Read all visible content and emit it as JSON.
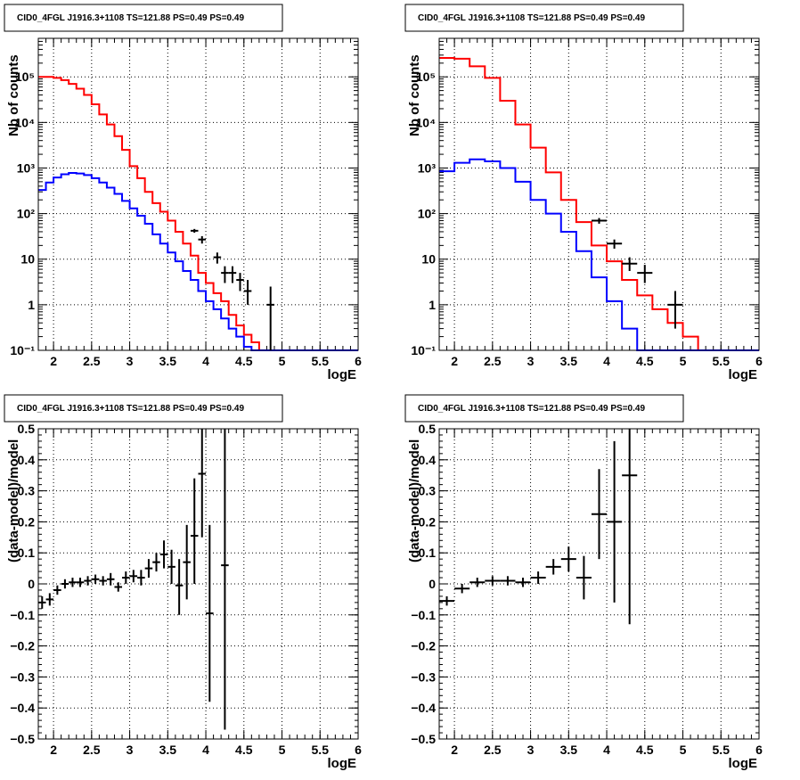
{
  "colors": {
    "model": "#ff0000",
    "component": "#0000ff",
    "data": "#000000"
  },
  "chart_data": [
    {
      "type": "line",
      "title": "CID0_4FGL J1916.3+1108 TS=121.88 PS=0.49 PS=0.49",
      "xlabel": "logE",
      "ylabel": "Nb of counts",
      "log_y": true,
      "grid": true,
      "xlim": [
        1.8,
        6.0
      ],
      "ylim": [
        0.1,
        700000
      ],
      "x_ticks": [
        "2",
        "2.5",
        "3",
        "3.5",
        "4",
        "4.5",
        "5",
        "5.5",
        "6"
      ],
      "y_ticks": [
        "10⁻¹",
        "1",
        "10",
        "10²",
        "10³",
        "10⁴",
        "10⁵"
      ],
      "series": [
        {
          "style": "step",
          "color_key": "model",
          "edges": [
            1.8,
            1.9,
            2.0,
            2.1,
            2.2,
            2.3,
            2.4,
            2.5,
            2.6,
            2.7,
            2.8,
            2.9,
            3.0,
            3.1,
            3.2,
            3.3,
            3.4,
            3.5,
            3.6,
            3.7,
            3.8,
            3.9,
            4.0,
            4.1,
            4.2,
            4.3,
            4.4,
            4.5,
            4.6,
            4.7,
            4.8,
            4.9,
            5.0,
            5.1,
            5.2,
            5.3,
            5.4,
            5.5,
            5.6,
            5.7,
            5.8,
            5.9,
            6.0
          ],
          "values": [
            100000,
            100000,
            95000,
            85000,
            70000,
            55000,
            40000,
            25000,
            15000,
            9000,
            5000,
            2500,
            1100,
            600,
            300,
            170,
            110,
            70,
            40,
            22,
            12,
            5,
            3,
            1.8,
            1.2,
            0.6,
            0.35,
            0.22,
            0.15,
            0.1,
            0.1,
            0.1,
            0.1,
            0.1,
            0.1,
            0.1,
            0.1,
            0.1,
            0.1,
            0.1,
            0.1,
            0.1
          ]
        },
        {
          "style": "step",
          "color_key": "component",
          "edges": [
            1.8,
            1.9,
            2.0,
            2.1,
            2.2,
            2.3,
            2.4,
            2.5,
            2.6,
            2.7,
            2.8,
            2.9,
            3.0,
            3.1,
            3.2,
            3.3,
            3.4,
            3.5,
            3.6,
            3.7,
            3.8,
            3.9,
            4.0,
            4.1,
            4.2,
            4.3,
            4.4,
            4.5,
            4.6,
            4.7,
            4.8,
            4.9,
            5.0,
            5.1,
            5.2,
            5.3,
            5.4,
            5.5,
            5.6,
            5.7,
            5.8,
            5.9,
            6.0
          ],
          "values": [
            330,
            480,
            620,
            730,
            780,
            760,
            700,
            600,
            480,
            370,
            270,
            190,
            130,
            90,
            60,
            35,
            22,
            14,
            9,
            5.5,
            3.5,
            2,
            1.2,
            0.8,
            0.5,
            0.3,
            0.2,
            0.12,
            0.1,
            0.1,
            0.1,
            0.1,
            0.1,
            0.1,
            0.1,
            0.1,
            0.1,
            0.1,
            0.1,
            0.1,
            0.1,
            0.1
          ]
        },
        {
          "style": "errorbar",
          "color_key": "data",
          "points": [
            {
              "x": 3.85,
              "y": 42,
              "xerr": 0.05,
              "ylo": 38,
              "yhi": 46
            },
            {
              "x": 3.95,
              "y": 27,
              "xerr": 0.05,
              "ylo": 22,
              "yhi": 32
            },
            {
              "x": 4.15,
              "y": 11,
              "xerr": 0.05,
              "ylo": 8,
              "yhi": 14
            },
            {
              "x": 4.25,
              "y": 5,
              "xerr": 0.05,
              "ylo": 3,
              "yhi": 7
            },
            {
              "x": 4.35,
              "y": 5,
              "xerr": 0.05,
              "ylo": 3,
              "yhi": 7
            },
            {
              "x": 4.45,
              "y": 3.5,
              "xerr": 0.05,
              "ylo": 2,
              "yhi": 5
            },
            {
              "x": 4.55,
              "y": 2,
              "xerr": 0.05,
              "ylo": 1,
              "yhi": 3.5
            },
            {
              "x": 4.85,
              "y": 1,
              "xerr": 0.05,
              "ylo": 0.1,
              "yhi": 2.5
            }
          ]
        }
      ]
    },
    {
      "type": "line",
      "title": "CID0_4FGL J1916.3+1108 TS=121.88 PS=0.49 PS=0.49",
      "xlabel": "logE",
      "ylabel": "Nb of counts",
      "log_y": true,
      "grid": true,
      "xlim": [
        1.8,
        6.0
      ],
      "ylim": [
        0.1,
        700000
      ],
      "x_ticks": [
        "2",
        "2.5",
        "3",
        "3.5",
        "4",
        "4.5",
        "5",
        "5.5",
        "6"
      ],
      "y_ticks": [
        "10⁻¹",
        "1",
        "10",
        "10²",
        "10³",
        "10⁴",
        "10⁵"
      ],
      "series": [
        {
          "style": "step",
          "color_key": "model",
          "edges": [
            1.8,
            2.0,
            2.2,
            2.4,
            2.6,
            2.8,
            3.0,
            3.2,
            3.4,
            3.6,
            3.8,
            4.0,
            4.2,
            4.4,
            4.6,
            4.8,
            5.0,
            5.2,
            5.4,
            5.6,
            5.8,
            6.0
          ],
          "values": [
            260000,
            250000,
            170000,
            95000,
            30000,
            9000,
            2800,
            800,
            200,
            65,
            20,
            9,
            3.5,
            1.6,
            0.8,
            0.4,
            0.2,
            0.1,
            0.1,
            0.1,
            0.1
          ]
        },
        {
          "style": "step",
          "color_key": "component",
          "edges": [
            1.8,
            2.0,
            2.2,
            2.4,
            2.6,
            2.8,
            3.0,
            3.2,
            3.4,
            3.6,
            3.8,
            4.0,
            4.2,
            4.4,
            4.6,
            4.8,
            5.0,
            5.2,
            5.4,
            5.6,
            5.8,
            6.0
          ],
          "values": [
            850,
            1300,
            1550,
            1400,
            1000,
            500,
            200,
            100,
            40,
            15,
            4,
            1.2,
            0.3,
            0.1,
            0.1,
            0.1,
            0.1,
            0.1,
            0.1,
            0.1,
            0.1
          ]
        },
        {
          "style": "errorbar",
          "color_key": "data",
          "points": [
            {
              "x": 3.9,
              "y": 70,
              "xerr": 0.1,
              "ylo": 60,
              "yhi": 80
            },
            {
              "x": 4.1,
              "y": 22,
              "xerr": 0.1,
              "ylo": 17,
              "yhi": 27
            },
            {
              "x": 4.3,
              "y": 8,
              "xerr": 0.1,
              "ylo": 5.5,
              "yhi": 11
            },
            {
              "x": 4.5,
              "y": 5,
              "xerr": 0.1,
              "ylo": 3,
              "yhi": 7.5
            },
            {
              "x": 4.9,
              "y": 1,
              "xerr": 0.1,
              "ylo": 0.3,
              "yhi": 2
            }
          ]
        }
      ]
    },
    {
      "type": "scatter",
      "title": "CID0_4FGL J1916.3+1108 TS=121.88 PS=0.49 PS=0.49",
      "xlabel": "logE",
      "ylabel": "(data-model)/model",
      "log_y": false,
      "grid": true,
      "xlim": [
        1.8,
        6.0
      ],
      "ylim": [
        -0.5,
        0.5
      ],
      "x_ticks": [
        "2",
        "2.5",
        "3",
        "3.5",
        "4",
        "4.5",
        "5",
        "5.5",
        "6"
      ],
      "y_ticks": [
        "−0.5",
        "−0.4",
        "−0.3",
        "−0.2",
        "−0.1",
        "0",
        "0.1",
        "0.2",
        "0.3",
        "0.4",
        "0.5"
      ],
      "series": [
        {
          "style": "errorbar",
          "color_key": "data",
          "points": [
            {
              "x": 1.85,
              "y": -0.06,
              "xerr": 0.05,
              "ylo": -0.08,
              "yhi": -0.04
            },
            {
              "x": 1.95,
              "y": -0.05,
              "xerr": 0.05,
              "ylo": -0.07,
              "yhi": -0.03
            },
            {
              "x": 2.05,
              "y": -0.02,
              "xerr": 0.05,
              "ylo": -0.035,
              "yhi": -0.005
            },
            {
              "x": 2.15,
              "y": 0.0,
              "xerr": 0.05,
              "ylo": -0.015,
              "yhi": 0.015
            },
            {
              "x": 2.25,
              "y": 0.005,
              "xerr": 0.05,
              "ylo": -0.01,
              "yhi": 0.02
            },
            {
              "x": 2.35,
              "y": 0.005,
              "xerr": 0.05,
              "ylo": -0.01,
              "yhi": 0.02
            },
            {
              "x": 2.45,
              "y": 0.01,
              "xerr": 0.05,
              "ylo": -0.005,
              "yhi": 0.025
            },
            {
              "x": 2.55,
              "y": 0.015,
              "xerr": 0.05,
              "ylo": 0.0,
              "yhi": 0.03
            },
            {
              "x": 2.65,
              "y": 0.01,
              "xerr": 0.05,
              "ylo": -0.005,
              "yhi": 0.025
            },
            {
              "x": 2.75,
              "y": 0.015,
              "xerr": 0.05,
              "ylo": -0.005,
              "yhi": 0.035
            },
            {
              "x": 2.85,
              "y": -0.01,
              "xerr": 0.05,
              "ylo": -0.025,
              "yhi": 0.005
            },
            {
              "x": 2.95,
              "y": 0.02,
              "xerr": 0.05,
              "ylo": 0.0,
              "yhi": 0.04
            },
            {
              "x": 3.05,
              "y": 0.025,
              "xerr": 0.05,
              "ylo": 0.005,
              "yhi": 0.045
            },
            {
              "x": 3.15,
              "y": 0.02,
              "xerr": 0.05,
              "ylo": -0.005,
              "yhi": 0.045
            },
            {
              "x": 3.25,
              "y": 0.05,
              "xerr": 0.05,
              "ylo": 0.02,
              "yhi": 0.08
            },
            {
              "x": 3.35,
              "y": 0.07,
              "xerr": 0.05,
              "ylo": 0.04,
              "yhi": 0.1
            },
            {
              "x": 3.45,
              "y": 0.095,
              "xerr": 0.05,
              "ylo": 0.05,
              "yhi": 0.14
            },
            {
              "x": 3.55,
              "y": 0.055,
              "xerr": 0.05,
              "ylo": 0.0,
              "yhi": 0.11
            },
            {
              "x": 3.65,
              "y": -0.005,
              "xerr": 0.05,
              "ylo": -0.1,
              "yhi": 0.08
            },
            {
              "x": 3.75,
              "y": 0.07,
              "xerr": 0.05,
              "ylo": -0.05,
              "yhi": 0.19
            },
            {
              "x": 3.85,
              "y": 0.155,
              "xerr": 0.05,
              "ylo": 0.0,
              "yhi": 0.34
            },
            {
              "x": 3.95,
              "y": 0.355,
              "xerr": 0.05,
              "ylo": 0.15,
              "yhi": 0.5
            },
            {
              "x": 4.05,
              "y": -0.095,
              "xerr": 0.05,
              "ylo": -0.38,
              "yhi": 0.19
            },
            {
              "x": 4.25,
              "y": 0.06,
              "xerr": 0.05,
              "ylo": -0.47,
              "yhi": 0.5
            }
          ]
        }
      ]
    },
    {
      "type": "scatter",
      "title": "CID0_4FGL J1916.3+1108 TS=121.88 PS=0.49 PS=0.49",
      "xlabel": "logE",
      "ylabel": "(data-model)/model",
      "log_y": false,
      "grid": true,
      "xlim": [
        1.8,
        6.0
      ],
      "ylim": [
        -0.5,
        0.5
      ],
      "x_ticks": [
        "2",
        "2.5",
        "3",
        "3.5",
        "4",
        "4.5",
        "5",
        "5.5",
        "6"
      ],
      "y_ticks": [
        "−0.5",
        "−0.4",
        "−0.3",
        "−0.2",
        "−0.1",
        "0",
        "0.1",
        "0.2",
        "0.3",
        "0.4",
        "0.5"
      ],
      "series": [
        {
          "style": "errorbar",
          "color_key": "data",
          "points": [
            {
              "x": 1.9,
              "y": -0.055,
              "xerr": 0.1,
              "ylo": -0.07,
              "yhi": -0.04
            },
            {
              "x": 2.1,
              "y": -0.015,
              "xerr": 0.1,
              "ylo": -0.03,
              "yhi": 0.0
            },
            {
              "x": 2.3,
              "y": 0.005,
              "xerr": 0.1,
              "ylo": -0.01,
              "yhi": 0.02
            },
            {
              "x": 2.5,
              "y": 0.01,
              "xerr": 0.1,
              "ylo": -0.005,
              "yhi": 0.025
            },
            {
              "x": 2.7,
              "y": 0.01,
              "xerr": 0.1,
              "ylo": -0.005,
              "yhi": 0.025
            },
            {
              "x": 2.9,
              "y": 0.005,
              "xerr": 0.1,
              "ylo": -0.01,
              "yhi": 0.02
            },
            {
              "x": 3.1,
              "y": 0.02,
              "xerr": 0.1,
              "ylo": 0.0,
              "yhi": 0.04
            },
            {
              "x": 3.3,
              "y": 0.055,
              "xerr": 0.1,
              "ylo": 0.03,
              "yhi": 0.08
            },
            {
              "x": 3.5,
              "y": 0.08,
              "xerr": 0.1,
              "ylo": 0.04,
              "yhi": 0.12
            },
            {
              "x": 3.7,
              "y": 0.02,
              "xerr": 0.1,
              "ylo": -0.05,
              "yhi": 0.09
            },
            {
              "x": 3.9,
              "y": 0.225,
              "xerr": 0.1,
              "ylo": 0.08,
              "yhi": 0.37
            },
            {
              "x": 4.1,
              "y": 0.2,
              "xerr": 0.1,
              "ylo": -0.06,
              "yhi": 0.46
            },
            {
              "x": 4.3,
              "y": 0.35,
              "xerr": 0.1,
              "ylo": -0.13,
              "yhi": 0.5
            }
          ]
        }
      ]
    }
  ]
}
